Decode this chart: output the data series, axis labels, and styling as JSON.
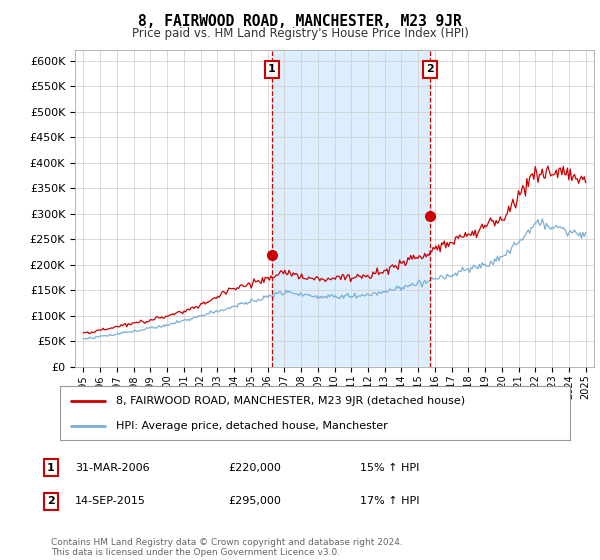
{
  "title": "8, FAIRWOOD ROAD, MANCHESTER, M23 9JR",
  "subtitle": "Price paid vs. HM Land Registry's House Price Index (HPI)",
  "legend_line1": "8, FAIRWOOD ROAD, MANCHESTER, M23 9JR (detached house)",
  "legend_line2": "HPI: Average price, detached house, Manchester",
  "footer": "Contains HM Land Registry data © Crown copyright and database right 2024.\nThis data is licensed under the Open Government Licence v3.0.",
  "price_color": "#cc0000",
  "hpi_color": "#7ab0d4",
  "shade_color": "#ddeeff",
  "marker1": {
    "label": "1",
    "date_str": "31-MAR-2006",
    "value": 220000,
    "x": 2006.25,
    "hpi_note": "15% ↑ HPI"
  },
  "marker2": {
    "label": "2",
    "date_str": "14-SEP-2015",
    "value": 295000,
    "x": 2015.71,
    "hpi_note": "17% ↑ HPI"
  },
  "marker_box_color": "#cc0000",
  "dashed_line_color": "#cc0000",
  "ylim": [
    0,
    620000
  ],
  "yticks": [
    0,
    50000,
    100000,
    150000,
    200000,
    250000,
    300000,
    350000,
    400000,
    450000,
    500000,
    550000,
    600000
  ],
  "xlim": [
    1994.5,
    2025.5
  ],
  "background_color": "#ffffff",
  "grid_color": "#cccccc"
}
